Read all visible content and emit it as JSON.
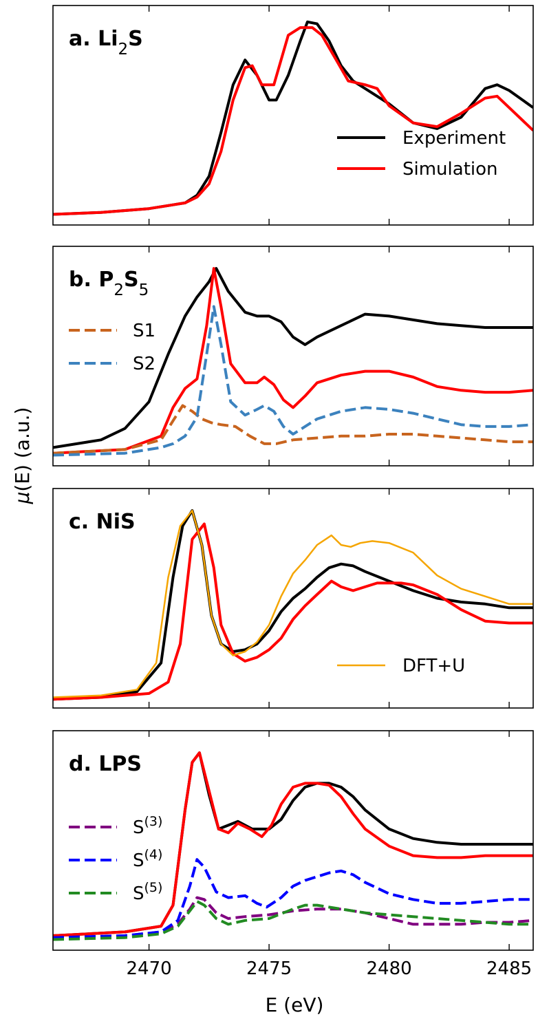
{
  "figure": {
    "ylabel_mu": "μ",
    "ylabel_rest": "(E) (a.u.)",
    "xlabel": "E (eV)",
    "xticks": [
      "2470",
      "2475",
      "2480",
      "2485"
    ]
  },
  "colors": {
    "experiment": "#000000",
    "simulation": "#ff0000",
    "s1": "#c8641e",
    "s2": "#3c82be",
    "dftu": "#f5a500",
    "s3": "#800080",
    "s4": "#0000ff",
    "s5": "#228b22"
  },
  "chart_data": [
    {
      "type": "line",
      "panel_label_a": "a. Li",
      "panel_label_sub1": "2",
      "panel_label_b": "S",
      "panel_label_sub2": "",
      "xlim": [
        2466,
        2486
      ],
      "ylim": [
        0,
        1.08
      ],
      "legend_position": "bottom-right",
      "series": [
        {
          "name": "Experiment",
          "color_key": "experiment",
          "dashed": false,
          "width": 4,
          "in_legend": true,
          "x": [
            2466,
            2468,
            2470,
            2471.5,
            2472,
            2472.5,
            2473,
            2473.5,
            2474,
            2474.5,
            2475,
            2475.3,
            2475.8,
            2476.3,
            2476.6,
            2477,
            2477.5,
            2478,
            2478.5,
            2479,
            2480,
            2481,
            2482,
            2483,
            2484,
            2484.5,
            2485,
            2486
          ],
          "y": [
            0.02,
            0.03,
            0.05,
            0.08,
            0.12,
            0.22,
            0.45,
            0.7,
            0.83,
            0.75,
            0.62,
            0.62,
            0.75,
            0.93,
            1.03,
            1.02,
            0.93,
            0.8,
            0.72,
            0.68,
            0.6,
            0.5,
            0.47,
            0.53,
            0.68,
            0.7,
            0.67,
            0.58
          ]
        },
        {
          "name": "Simulation",
          "color_key": "simulation",
          "dashed": false,
          "width": 4,
          "in_legend": true,
          "x": [
            2466,
            2468,
            2470,
            2471.5,
            2472,
            2472.5,
            2473,
            2473.5,
            2474,
            2474.3,
            2474.7,
            2475.2,
            2475.8,
            2476.3,
            2476.8,
            2477.2,
            2477.8,
            2478.3,
            2479,
            2479.5,
            2480,
            2481,
            2482,
            2483,
            2484,
            2484.5,
            2485,
            2486
          ],
          "y": [
            0.02,
            0.03,
            0.05,
            0.08,
            0.11,
            0.18,
            0.35,
            0.62,
            0.79,
            0.8,
            0.7,
            0.7,
            0.96,
            1.0,
            1.0,
            0.96,
            0.83,
            0.72,
            0.7,
            0.68,
            0.59,
            0.5,
            0.48,
            0.55,
            0.63,
            0.64,
            0.58,
            0.46
          ]
        }
      ]
    },
    {
      "type": "line",
      "panel_label_a": "b. P",
      "panel_label_sub1": "2",
      "panel_label_b": "S",
      "panel_label_sub2": "5",
      "xlim": [
        2466,
        2486
      ],
      "ylim": [
        0,
        1.08
      ],
      "legend_position": "middle-left",
      "series": [
        {
          "name": "",
          "color_key": "experiment",
          "dashed": false,
          "width": 4,
          "in_legend": false,
          "x": [
            2466,
            2468,
            2469,
            2470,
            2470.8,
            2471.5,
            2472,
            2472.5,
            2472.8,
            2473.3,
            2474,
            2474.5,
            2475,
            2475.5,
            2476,
            2476.5,
            2477,
            2478,
            2479,
            2480,
            2481,
            2482,
            2483,
            2484,
            2485,
            2486
          ],
          "y": [
            0.06,
            0.1,
            0.16,
            0.3,
            0.55,
            0.75,
            0.85,
            0.93,
            1.0,
            0.88,
            0.77,
            0.75,
            0.75,
            0.72,
            0.64,
            0.6,
            0.64,
            0.7,
            0.76,
            0.75,
            0.73,
            0.71,
            0.7,
            0.69,
            0.69,
            0.69
          ]
        },
        {
          "name": "",
          "color_key": "simulation",
          "dashed": false,
          "width": 4,
          "in_legend": false,
          "x": [
            2466,
            2469,
            2470.5,
            2471,
            2471.5,
            2472,
            2472.4,
            2472.7,
            2473,
            2473.4,
            2474,
            2474.5,
            2474.8,
            2475.2,
            2475.6,
            2476,
            2476.5,
            2477,
            2478,
            2479,
            2480,
            2481,
            2482,
            2483,
            2484,
            2485,
            2486
          ],
          "y": [
            0.03,
            0.05,
            0.12,
            0.27,
            0.37,
            0.42,
            0.7,
            1.0,
            0.8,
            0.5,
            0.4,
            0.4,
            0.43,
            0.39,
            0.31,
            0.27,
            0.33,
            0.4,
            0.44,
            0.46,
            0.46,
            0.43,
            0.38,
            0.36,
            0.35,
            0.35,
            0.36
          ]
        },
        {
          "name": "S1",
          "color_key": "s1",
          "dashed": true,
          "width": 4,
          "in_legend": true,
          "x": [
            2466,
            2469,
            2470.5,
            2471,
            2471.4,
            2471.8,
            2472.2,
            2472.6,
            2473,
            2473.6,
            2474.2,
            2474.8,
            2475.3,
            2476,
            2477,
            2478,
            2479,
            2480,
            2481,
            2482,
            2483,
            2484,
            2485,
            2486
          ],
          "y": [
            0.03,
            0.05,
            0.1,
            0.2,
            0.28,
            0.25,
            0.21,
            0.19,
            0.18,
            0.17,
            0.12,
            0.08,
            0.08,
            0.1,
            0.11,
            0.12,
            0.12,
            0.13,
            0.13,
            0.12,
            0.11,
            0.1,
            0.09,
            0.09
          ]
        },
        {
          "name": "S2",
          "color_key": "s2",
          "dashed": true,
          "width": 4,
          "in_legend": true,
          "x": [
            2466,
            2469,
            2470.5,
            2471,
            2471.5,
            2472,
            2472.4,
            2472.7,
            2473,
            2473.4,
            2474,
            2474.5,
            2474.8,
            2475.2,
            2475.6,
            2476,
            2476.5,
            2477,
            2478,
            2479,
            2480,
            2481,
            2482,
            2483,
            2484,
            2485,
            2486
          ],
          "y": [
            0.02,
            0.03,
            0.06,
            0.08,
            0.12,
            0.22,
            0.55,
            0.8,
            0.6,
            0.3,
            0.23,
            0.26,
            0.28,
            0.25,
            0.17,
            0.13,
            0.17,
            0.21,
            0.25,
            0.27,
            0.26,
            0.24,
            0.21,
            0.18,
            0.17,
            0.17,
            0.18
          ]
        }
      ]
    },
    {
      "type": "line",
      "panel_label_a": "c. NiS",
      "panel_label_sub1": "",
      "panel_label_b": "",
      "panel_label_sub2": "",
      "xlim": [
        2466,
        2486
      ],
      "ylim": [
        0,
        1.08
      ],
      "legend_position": "bottom-right",
      "series": [
        {
          "name": "",
          "color_key": "experiment",
          "dashed": false,
          "width": 4,
          "in_legend": false,
          "x": [
            2466,
            2468,
            2469.5,
            2470.5,
            2471,
            2471.4,
            2471.8,
            2472.2,
            2472.6,
            2473,
            2473.5,
            2474,
            2474.5,
            2475,
            2475.5,
            2476,
            2476.5,
            2477,
            2477.5,
            2478,
            2478.5,
            2479,
            2480,
            2481,
            2482,
            2483,
            2484,
            2485,
            2486
          ],
          "y": [
            0.01,
            0.02,
            0.05,
            0.2,
            0.65,
            0.92,
            1.0,
            0.82,
            0.45,
            0.3,
            0.26,
            0.27,
            0.3,
            0.37,
            0.47,
            0.54,
            0.59,
            0.65,
            0.7,
            0.72,
            0.71,
            0.68,
            0.63,
            0.58,
            0.54,
            0.52,
            0.51,
            0.49,
            0.49
          ]
        },
        {
          "name": "",
          "color_key": "simulation",
          "dashed": false,
          "width": 4,
          "in_legend": false,
          "x": [
            2466,
            2468,
            2470,
            2470.8,
            2471.3,
            2471.8,
            2472.3,
            2472.7,
            2473,
            2473.5,
            2474,
            2474.5,
            2475,
            2475.5,
            2476,
            2476.5,
            2477,
            2477.6,
            2478,
            2478.5,
            2479,
            2479.5,
            2480,
            2480.5,
            2481,
            2482,
            2483,
            2484,
            2485,
            2486
          ],
          "y": [
            0.01,
            0.02,
            0.04,
            0.1,
            0.3,
            0.85,
            0.93,
            0.7,
            0.4,
            0.25,
            0.21,
            0.23,
            0.27,
            0.33,
            0.43,
            0.5,
            0.56,
            0.63,
            0.6,
            0.58,
            0.6,
            0.62,
            0.62,
            0.62,
            0.61,
            0.56,
            0.48,
            0.42,
            0.41,
            0.41
          ]
        },
        {
          "name": "DFT+U",
          "color_key": "dftu",
          "dashed": false,
          "width": 2.5,
          "in_legend": true,
          "x": [
            2466,
            2468,
            2469.5,
            2470.3,
            2470.8,
            2471.3,
            2471.8,
            2472.2,
            2472.6,
            2473,
            2473.5,
            2474,
            2474.5,
            2475,
            2475.5,
            2476,
            2476.5,
            2477,
            2477.6,
            2478,
            2478.4,
            2478.8,
            2479.3,
            2480,
            2481,
            2482,
            2483,
            2484,
            2485,
            2486
          ],
          "y": [
            0.02,
            0.03,
            0.06,
            0.2,
            0.65,
            0.92,
            1.0,
            0.82,
            0.45,
            0.3,
            0.24,
            0.26,
            0.31,
            0.4,
            0.55,
            0.67,
            0.74,
            0.82,
            0.87,
            0.82,
            0.81,
            0.83,
            0.84,
            0.83,
            0.78,
            0.66,
            0.59,
            0.55,
            0.51,
            0.51
          ]
        }
      ]
    },
    {
      "type": "line",
      "panel_label_a": "d. LPS",
      "panel_label_sub1": "",
      "panel_label_b": "",
      "panel_label_sub2": "",
      "xlim": [
        2466,
        2486
      ],
      "ylim": [
        0,
        1.08
      ],
      "legend_position": "bottom-left",
      "series": [
        {
          "name": "",
          "color_key": "experiment",
          "dashed": false,
          "width": 4,
          "in_legend": false,
          "x": [
            2466,
            2469,
            2470.5,
            2471,
            2471.5,
            2471.8,
            2472.1,
            2472.5,
            2472.9,
            2473.3,
            2473.7,
            2474.3,
            2475,
            2475.5,
            2476,
            2476.5,
            2477,
            2477.5,
            2478,
            2478.5,
            2479,
            2480,
            2481,
            2482,
            2483,
            2484,
            2485,
            2486
          ],
          "y": [
            0.04,
            0.06,
            0.09,
            0.2,
            0.7,
            0.95,
            1.0,
            0.78,
            0.6,
            0.62,
            0.64,
            0.6,
            0.6,
            0.65,
            0.75,
            0.82,
            0.84,
            0.84,
            0.82,
            0.77,
            0.7,
            0.6,
            0.55,
            0.53,
            0.52,
            0.52,
            0.52,
            0.52
          ]
        },
        {
          "name": "",
          "color_key": "simulation",
          "dashed": false,
          "width": 4,
          "in_legend": false,
          "x": [
            2466,
            2469,
            2470.5,
            2471,
            2471.5,
            2471.8,
            2472.1,
            2472.5,
            2472.9,
            2473.3,
            2473.7,
            2474.2,
            2474.7,
            2475.1,
            2475.5,
            2476,
            2476.5,
            2477,
            2477.5,
            2478,
            2478.5,
            2479,
            2480,
            2481,
            2482,
            2483,
            2484,
            2485,
            2486
          ],
          "y": [
            0.04,
            0.06,
            0.09,
            0.2,
            0.7,
            0.95,
            1.0,
            0.8,
            0.6,
            0.58,
            0.63,
            0.6,
            0.56,
            0.62,
            0.73,
            0.82,
            0.84,
            0.84,
            0.83,
            0.77,
            0.68,
            0.6,
            0.51,
            0.46,
            0.45,
            0.45,
            0.46,
            0.46,
            0.46
          ]
        },
        {
          "name": "S",
          "sup": "(3)",
          "color_key": "s3",
          "dashed": true,
          "width": 4,
          "in_legend": true,
          "x": [
            2466,
            2469,
            2470.5,
            2471.2,
            2471.7,
            2472,
            2472.3,
            2472.8,
            2473.3,
            2474,
            2475,
            2476,
            2477,
            2478,
            2479,
            2480,
            2481,
            2482,
            2483,
            2484,
            2485,
            2486
          ],
          "y": [
            0.03,
            0.04,
            0.06,
            0.1,
            0.18,
            0.24,
            0.23,
            0.16,
            0.13,
            0.14,
            0.15,
            0.17,
            0.18,
            0.18,
            0.16,
            0.13,
            0.1,
            0.1,
            0.1,
            0.11,
            0.11,
            0.12
          ]
        },
        {
          "name": "S",
          "sup": "(4)",
          "color_key": "s4",
          "dashed": true,
          "width": 4,
          "in_legend": true,
          "x": [
            2466,
            2469,
            2470.5,
            2471.2,
            2471.7,
            2472,
            2472.3,
            2472.8,
            2473.3,
            2474,
            2474.5,
            2474.9,
            2475.5,
            2476,
            2476.5,
            2477,
            2477.5,
            2478,
            2478.5,
            2479,
            2480,
            2481,
            2482,
            2483,
            2484,
            2485,
            2486
          ],
          "y": [
            0.03,
            0.04,
            0.06,
            0.12,
            0.3,
            0.44,
            0.4,
            0.27,
            0.24,
            0.25,
            0.21,
            0.19,
            0.24,
            0.3,
            0.33,
            0.35,
            0.37,
            0.38,
            0.36,
            0.32,
            0.26,
            0.23,
            0.21,
            0.21,
            0.22,
            0.23,
            0.23
          ]
        },
        {
          "name": "S",
          "sup": "(5)",
          "color_key": "s5",
          "dashed": true,
          "width": 4,
          "in_legend": true,
          "x": [
            2466,
            2469,
            2470.5,
            2471.2,
            2471.7,
            2472,
            2472.3,
            2472.8,
            2473.3,
            2474,
            2475,
            2476,
            2476.5,
            2477,
            2478,
            2479,
            2480,
            2481,
            2482,
            2483,
            2484,
            2485,
            2486
          ],
          "y": [
            0.02,
            0.03,
            0.05,
            0.09,
            0.17,
            0.22,
            0.2,
            0.13,
            0.1,
            0.12,
            0.13,
            0.18,
            0.2,
            0.2,
            0.18,
            0.16,
            0.15,
            0.14,
            0.13,
            0.12,
            0.11,
            0.1,
            0.1
          ]
        }
      ]
    }
  ]
}
